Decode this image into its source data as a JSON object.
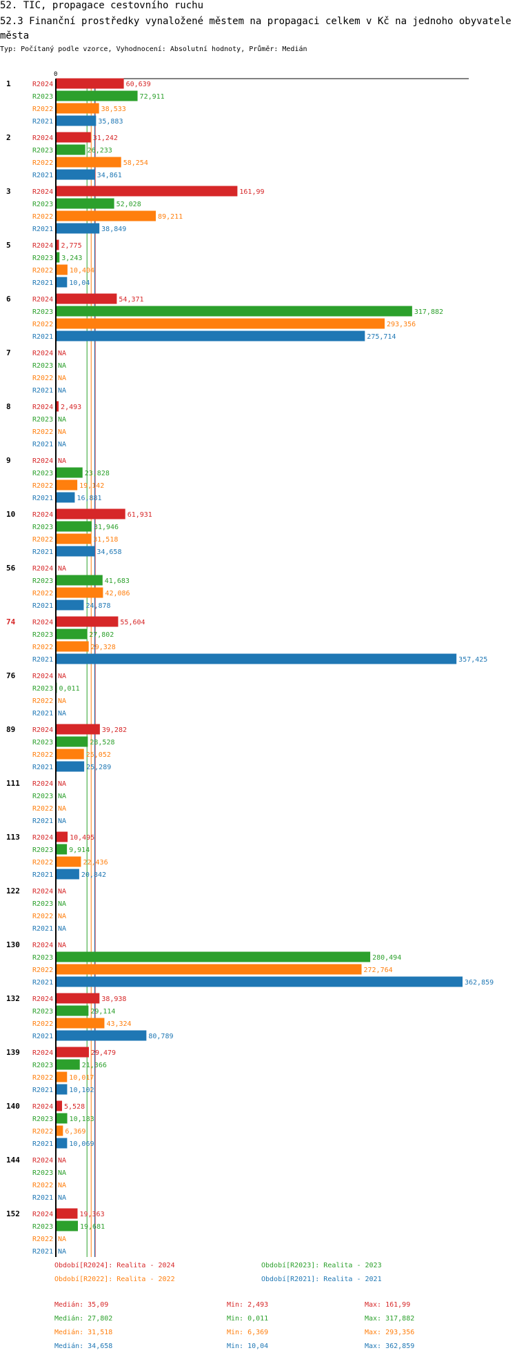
{
  "title": "52. TIC, propagace cestovního ruchu",
  "subtitle": "52.3 Finanční prostředky vynaložené městem na propagaci celkem v Kč na jednoho obyvatele města",
  "type_line": "Typ: Počítaný podle vzorce, Vyhodnocení: Absolutní hodnoty, Průměr: Medián",
  "colors": {
    "R2024": "#d62728",
    "R2023": "#2ca02c",
    "R2022": "#ff7f0e",
    "R2021": "#1f77b4",
    "highlight": "#d62728"
  },
  "legend": [
    {
      "key": "R2024",
      "text": "Období[R2024]: Realita - 2024"
    },
    {
      "key": "R2023",
      "text": "Období[R2023]: Realita - 2023"
    },
    {
      "key": "R2022",
      "text": "Období[R2022]: Realita - 2022"
    },
    {
      "key": "R2021",
      "text": "Období[R2021]: Realita - 2021"
    }
  ],
  "stats": [
    {
      "key": "R2024",
      "median": "Medián: 35,09",
      "min": "Min: 2,493",
      "max": "Max: 161,99"
    },
    {
      "key": "R2023",
      "median": "Medián: 27,802",
      "min": "Min: 0,011",
      "max": "Max: 317,882"
    },
    {
      "key": "R2022",
      "median": "Medián: 31,518",
      "min": "Min: 6,369",
      "max": "Max: 293,356"
    },
    {
      "key": "R2021",
      "median": "Medián: 34,658",
      "min": "Min: 10,04",
      "max": "Max: 362,859"
    }
  ],
  "chart_data": {
    "type": "bar",
    "orientation": "horizontal",
    "x_tick_label": "0",
    "xlim": [
      0,
      370
    ],
    "series_names": [
      "R2024",
      "R2023",
      "R2022",
      "R2021"
    ],
    "na_label": "NA",
    "highlighted_group": "74",
    "median_lines": [
      {
        "key": "R2024",
        "value": 35.09
      },
      {
        "key": "R2023",
        "value": 27.802
      },
      {
        "key": "R2022",
        "value": 31.518
      },
      {
        "key": "R2021",
        "value": 34.658
      }
    ],
    "groups": [
      {
        "id": "1",
        "values": [
          60.639,
          72.911,
          38.533,
          35.883
        ],
        "labels": [
          "60,639",
          "72,911",
          "38,533",
          "35,883"
        ]
      },
      {
        "id": "2",
        "values": [
          31.242,
          26.233,
          58.254,
          34.861
        ],
        "labels": [
          "31,242",
          "26,233",
          "58,254",
          "34,861"
        ]
      },
      {
        "id": "3",
        "values": [
          161.99,
          52.028,
          89.211,
          38.849
        ],
        "labels": [
          "161,99",
          "52,028",
          "89,211",
          "38,849"
        ]
      },
      {
        "id": "5",
        "values": [
          2.775,
          3.243,
          10.404,
          10.04
        ],
        "labels": [
          "2,775",
          "3,243",
          "10,404",
          "10,04"
        ]
      },
      {
        "id": "6",
        "values": [
          54.371,
          317.882,
          293.356,
          275.714
        ],
        "labels": [
          "54,371",
          "317,882",
          "293,356",
          "275,714"
        ]
      },
      {
        "id": "7",
        "values": [
          null,
          null,
          null,
          null
        ],
        "labels": [
          "NA",
          "NA",
          "NA",
          "NA"
        ]
      },
      {
        "id": "8",
        "values": [
          2.493,
          null,
          null,
          null
        ],
        "labels": [
          "2,493",
          "NA",
          "NA",
          "NA"
        ]
      },
      {
        "id": "9",
        "values": [
          null,
          23.828,
          19.142,
          16.881
        ],
        "labels": [
          "NA",
          "23,828",
          "19,142",
          "16,881"
        ]
      },
      {
        "id": "10",
        "values": [
          61.931,
          31.946,
          31.518,
          34.658
        ],
        "labels": [
          "61,931",
          "31,946",
          "31,518",
          "34,658"
        ]
      },
      {
        "id": "56",
        "values": [
          null,
          41.683,
          42.086,
          24.878
        ],
        "labels": [
          "NA",
          "41,683",
          "42,086",
          "24,878"
        ]
      },
      {
        "id": "74",
        "values": [
          55.604,
          27.802,
          29.328,
          357.425
        ],
        "labels": [
          "55,604",
          "27,802",
          "29,328",
          "357,425"
        ]
      },
      {
        "id": "76",
        "values": [
          null,
          0.011,
          null,
          null
        ],
        "labels": [
          "NA",
          "0,011",
          "NA",
          "NA"
        ]
      },
      {
        "id": "89",
        "values": [
          39.282,
          28.528,
          25.052,
          25.289
        ],
        "labels": [
          "39,282",
          "28,528",
          "25,052",
          "25,289"
        ]
      },
      {
        "id": "111",
        "values": [
          null,
          null,
          null,
          null
        ],
        "labels": [
          "NA",
          "NA",
          "NA",
          "NA"
        ]
      },
      {
        "id": "113",
        "values": [
          10.495,
          9.914,
          22.436,
          20.842
        ],
        "labels": [
          "10,495",
          "9,914",
          "22,436",
          "20,842"
        ]
      },
      {
        "id": "122",
        "values": [
          null,
          null,
          null,
          null
        ],
        "labels": [
          "NA",
          "NA",
          "NA",
          "NA"
        ]
      },
      {
        "id": "130",
        "values": [
          null,
          280.494,
          272.764,
          362.859
        ],
        "labels": [
          "NA",
          "280,494",
          "272,764",
          "362,859"
        ]
      },
      {
        "id": "132",
        "values": [
          38.938,
          29.114,
          43.324,
          80.789
        ],
        "labels": [
          "38,938",
          "29,114",
          "43,324",
          "80,789"
        ]
      },
      {
        "id": "139",
        "values": [
          29.479,
          21.366,
          10.017,
          10.102
        ],
        "labels": [
          "29,479",
          "21,366",
          "10,017",
          "10,102"
        ]
      },
      {
        "id": "140",
        "values": [
          5.528,
          10.183,
          6.369,
          10.069
        ],
        "labels": [
          "5,528",
          "10,183",
          "6,369",
          "10,069"
        ]
      },
      {
        "id": "144",
        "values": [
          null,
          null,
          null,
          null
        ],
        "labels": [
          "NA",
          "NA",
          "NA",
          "NA"
        ]
      },
      {
        "id": "152",
        "values": [
          19.363,
          19.681,
          null,
          null
        ],
        "labels": [
          "19,363",
          "19,681",
          "NA",
          "NA"
        ]
      }
    ]
  }
}
